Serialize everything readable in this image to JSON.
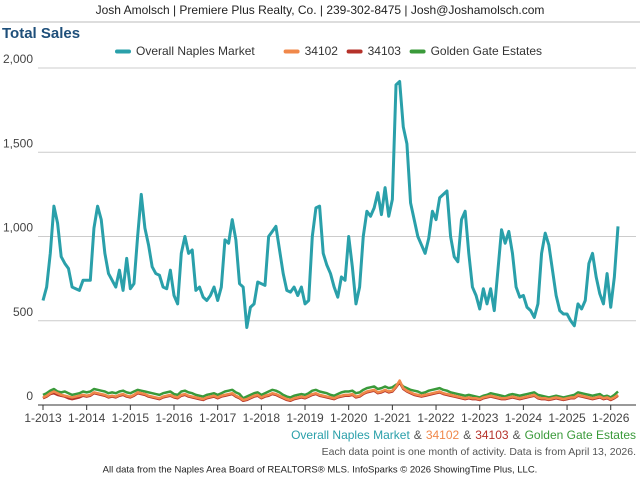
{
  "header": "Josh Amolsch | Premiere Plus Realty, Co. | 239-302-8475 | Josh@Joshamolsch.com",
  "chart_data": {
    "type": "line",
    "title": "Total Sales",
    "categories": [
      "1-2013",
      null,
      null,
      null,
      null,
      null,
      null,
      null,
      null,
      null,
      null,
      null,
      "1-2014",
      null,
      null,
      null,
      null,
      null,
      null,
      null,
      null,
      null,
      null,
      null,
      "1-2015",
      null,
      null,
      null,
      null,
      null,
      null,
      null,
      null,
      null,
      null,
      null,
      "1-2016",
      null,
      null,
      null,
      null,
      null,
      null,
      null,
      null,
      null,
      null,
      null,
      "1-2017",
      null,
      null,
      null,
      null,
      null,
      null,
      null,
      null,
      null,
      null,
      null,
      "1-2018",
      null,
      null,
      null,
      null,
      null,
      null,
      null,
      null,
      null,
      null,
      null,
      "1-2019",
      null,
      null,
      null,
      null,
      null,
      null,
      null,
      null,
      null,
      null,
      null,
      "1-2020",
      null,
      null,
      null,
      null,
      null,
      null,
      null,
      null,
      null,
      null,
      null,
      "1-2021",
      null,
      null,
      null,
      null,
      null,
      null,
      null,
      null,
      null,
      null,
      null,
      "1-2022",
      null,
      null,
      null,
      null,
      null,
      null,
      null,
      null,
      null,
      null,
      null,
      "1-2023",
      null,
      null,
      null,
      null,
      null,
      null,
      null,
      null,
      null,
      null,
      null,
      "1-2024",
      null,
      null,
      null,
      null,
      null,
      null,
      null,
      null,
      null,
      null,
      null,
      "1-2025",
      null,
      null,
      null,
      null,
      null,
      null,
      null,
      null,
      null,
      null,
      null,
      "1-2026",
      null,
      null
    ],
    "series": [
      {
        "name": "Overall Naples Market",
        "color": "#2aa0aa",
        "values": [
          620,
          700,
          900,
          1180,
          1080,
          880,
          840,
          810,
          700,
          690,
          680,
          740,
          740,
          740,
          1050,
          1180,
          1100,
          900,
          780,
          740,
          700,
          800,
          680,
          870,
          690,
          720,
          1000,
          1250,
          1050,
          950,
          820,
          780,
          770,
          700,
          690,
          800,
          650,
          600,
          900,
          1000,
          900,
          920,
          680,
          700,
          640,
          620,
          650,
          700,
          620,
          700,
          980,
          960,
          1100,
          980,
          720,
          700,
          460,
          580,
          600,
          730,
          720,
          710,
          1000,
          1030,
          1060,
          920,
          780,
          680,
          670,
          700,
          650,
          700,
          600,
          620,
          1000,
          1170,
          1180,
          900,
          830,
          780,
          700,
          640,
          760,
          740,
          1000,
          820,
          600,
          700,
          1000,
          1150,
          1120,
          1170,
          1260,
          1130,
          1290,
          1120,
          1220,
          1900,
          1920,
          1650,
          1550,
          1200,
          1100,
          1000,
          950,
          900,
          990,
          1150,
          1100,
          1230,
          1250,
          1270,
          1000,
          880,
          850,
          1100,
          1150,
          900,
          700,
          650,
          570,
          690,
          600,
          690,
          560,
          800,
          1040,
          960,
          1030,
          900,
          700,
          640,
          650,
          580,
          560,
          520,
          600,
          900,
          1020,
          950,
          800,
          650,
          560,
          540,
          540,
          500,
          470,
          600,
          570,
          620,
          840,
          900,
          760,
          660,
          600,
          780,
          580,
          760,
          1060
        ]
      },
      {
        "name": "34102",
        "color": "#f0884a",
        "values": [
          45,
          55,
          70,
          80,
          70,
          60,
          55,
          50,
          45,
          50,
          55,
          60,
          55,
          60,
          75,
          70,
          65,
          60,
          50,
          55,
          50,
          60,
          65,
          55,
          50,
          60,
          75,
          70,
          65,
          55,
          50,
          45,
          40,
          50,
          55,
          60,
          50,
          45,
          60,
          65,
          55,
          50,
          45,
          40,
          35,
          45,
          50,
          55,
          45,
          55,
          60,
          65,
          70,
          55,
          45,
          30,
          35,
          45,
          55,
          60,
          45,
          55,
          60,
          70,
          65,
          55,
          45,
          35,
          30,
          40,
          45,
          50,
          45,
          55,
          65,
          70,
          60,
          55,
          50,
          45,
          40,
          50,
          55,
          60,
          60,
          65,
          50,
          55,
          70,
          80,
          85,
          90,
          75,
          80,
          90,
          80,
          85,
          110,
          145,
          100,
          85,
          75,
          65,
          60,
          55,
          60,
          65,
          70,
          75,
          80,
          70,
          65,
          60,
          55,
          50,
          45,
          40,
          45,
          40,
          40,
          35,
          45,
          50,
          55,
          50,
          45,
          40,
          40,
          45,
          50,
          45,
          40,
          45,
          50,
          55,
          60,
          45,
          40,
          40,
          35,
          40,
          45,
          40,
          35,
          40,
          45,
          45,
          60,
          55,
          50,
          45,
          40,
          45,
          50,
          40,
          45,
          35,
          45,
          60
        ]
      },
      {
        "name": "34103",
        "color": "#b5322a",
        "values": [
          40,
          50,
          65,
          70,
          60,
          55,
          50,
          40,
          35,
          40,
          45,
          55,
          50,
          55,
          70,
          65,
          60,
          55,
          45,
          50,
          45,
          55,
          60,
          50,
          45,
          55,
          70,
          65,
          60,
          50,
          45,
          40,
          35,
          45,
          50,
          55,
          45,
          40,
          55,
          60,
          50,
          45,
          40,
          35,
          30,
          40,
          45,
          50,
          40,
          50,
          55,
          60,
          65,
          50,
          40,
          25,
          30,
          40,
          50,
          55,
          40,
          50,
          55,
          65,
          60,
          50,
          40,
          30,
          25,
          35,
          40,
          45,
          40,
          50,
          60,
          65,
          55,
          50,
          45,
          40,
          35,
          45,
          50,
          55,
          55,
          60,
          45,
          50,
          65,
          75,
          80,
          85,
          70,
          75,
          85,
          75,
          80,
          105,
          135,
          95,
          80,
          70,
          60,
          55,
          50,
          55,
          60,
          65,
          70,
          75,
          65,
          60,
          55,
          50,
          45,
          40,
          35,
          40,
          35,
          35,
          30,
          40,
          45,
          50,
          45,
          40,
          35,
          35,
          40,
          45,
          40,
          35,
          40,
          45,
          50,
          55,
          40,
          35,
          35,
          30,
          35,
          40,
          35,
          30,
          35,
          40,
          40,
          55,
          50,
          45,
          40,
          35,
          40,
          45,
          35,
          40,
          30,
          40,
          55
        ]
      },
      {
        "name": "Golden Gate Estates",
        "color": "#3a9a3a",
        "values": [
          60,
          70,
          85,
          95,
          80,
          75,
          80,
          70,
          60,
          65,
          70,
          80,
          75,
          80,
          95,
          90,
          85,
          80,
          70,
          75,
          70,
          80,
          85,
          75,
          70,
          80,
          90,
          85,
          80,
          75,
          70,
          65,
          60,
          70,
          75,
          80,
          65,
          60,
          80,
          85,
          75,
          70,
          60,
          55,
          50,
          60,
          65,
          70,
          60,
          70,
          80,
          85,
          90,
          75,
          65,
          40,
          50,
          60,
          70,
          75,
          60,
          70,
          80,
          90,
          85,
          75,
          60,
          50,
          45,
          55,
          60,
          65,
          60,
          70,
          85,
          90,
          80,
          75,
          70,
          60,
          55,
          65,
          75,
          80,
          80,
          85,
          70,
          75,
          90,
          100,
          105,
          110,
          95,
          100,
          110,
          100,
          105,
          120,
          130,
          110,
          100,
          90,
          85,
          80,
          70,
          75,
          85,
          90,
          95,
          100,
          90,
          85,
          75,
          70,
          65,
          60,
          55,
          60,
          55,
          50,
          45,
          55,
          60,
          70,
          65,
          60,
          55,
          50,
          60,
          65,
          60,
          55,
          60,
          65,
          70,
          75,
          60,
          55,
          50,
          45,
          50,
          55,
          50,
          45,
          50,
          55,
          60,
          75,
          70,
          65,
          60,
          55,
          60,
          65,
          50,
          55,
          45,
          60,
          80
        ]
      }
    ],
    "ylim": [
      0,
      2000
    ],
    "yticks": [
      0,
      500,
      {
        "value": 1000,
        "label": "1,000"
      },
      {
        "value": 1500,
        "label": "1,500"
      },
      {
        "value": 2000,
        "label": "2,000"
      }
    ],
    "grid": true,
    "legend": "top",
    "footer_separator": "&",
    "note": "Each data point is one month of activity. Data is from April 13, 2026.",
    "source": "All data from the Naples Area Board of REALTORS® MLS. InfoSparks © 2026 ShowingTime Plus, LLC."
  }
}
